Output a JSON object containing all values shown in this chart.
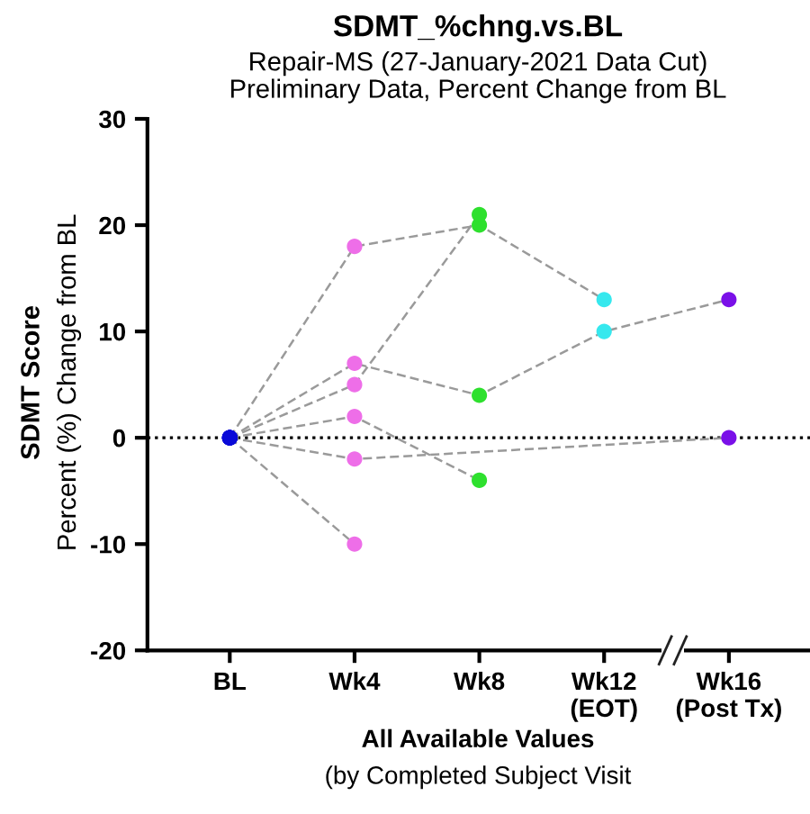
{
  "chart_data": {
    "type": "line",
    "title": "SDMT_%chng.vs.BL",
    "subtitle": "Repair-MS (27-January-2021 Data Cut)\nPreliminary Data, Percent Change from BL",
    "xlabel": "All Available Values\n(by Completed Subject Visit",
    "ylabel": "SDMT Score\nPercent (%) Change from BL",
    "categories": [
      "BL",
      "Wk4",
      "Wk8",
      "Wk12\n(EOT)",
      "Wk16\n(Post Tx)"
    ],
    "series": [
      {
        "color": "#9a9a9a",
        "colors": [
          "#0a0ad8",
          "#ee6ee8",
          "#2ee02e",
          "#36e8ee",
          "#7a10e8"
        ],
        "values": [
          0,
          18,
          20,
          13,
          null
        ]
      },
      {
        "color": "#9a9a9a",
        "colors": [
          "#0a0ad8",
          "#ee6ee8",
          "#2ee02e",
          "#36e8ee",
          "#7a10e8"
        ],
        "values": [
          0,
          5,
          21,
          null,
          null
        ]
      },
      {
        "color": "#9a9a9a",
        "colors": [
          "#0a0ad8",
          "#ee6ee8",
          "#2ee02e",
          "#36e8ee",
          "#7a10e8"
        ],
        "values": [
          0,
          7,
          4,
          10,
          13
        ]
      },
      {
        "color": "#9a9a9a",
        "colors": [
          "#0a0ad8",
          "#ee6ee8",
          "#2ee02e",
          "#36e8ee",
          "#7a10e8"
        ],
        "values": [
          0,
          2,
          -4,
          null,
          null
        ]
      },
      {
        "color": "#9a9a9a",
        "colors": [
          "#0a0ad8",
          "#ee6ee8",
          "#2ee02e",
          "#36e8ee",
          "#7a10e8"
        ],
        "values": [
          0,
          -2,
          null,
          null,
          0
        ]
      },
      {
        "color": "#9a9a9a",
        "colors": [
          "#0a0ad8",
          "#ee6ee8",
          "#2ee02e",
          "#36e8ee",
          "#7a10e8"
        ],
        "values": [
          0,
          -10,
          null,
          null,
          null
        ]
      }
    ],
    "marker": "circle",
    "line_style": "dashed",
    "ylim": [
      -20,
      30
    ],
    "yticks": [
      -20,
      -10,
      0,
      10,
      20,
      30
    ],
    "ref_lines": [
      {
        "axis": "y",
        "value": 0,
        "label": null,
        "color": "#000000",
        "line_style": "dotted"
      }
    ],
    "grid": false,
    "legend": false
  }
}
